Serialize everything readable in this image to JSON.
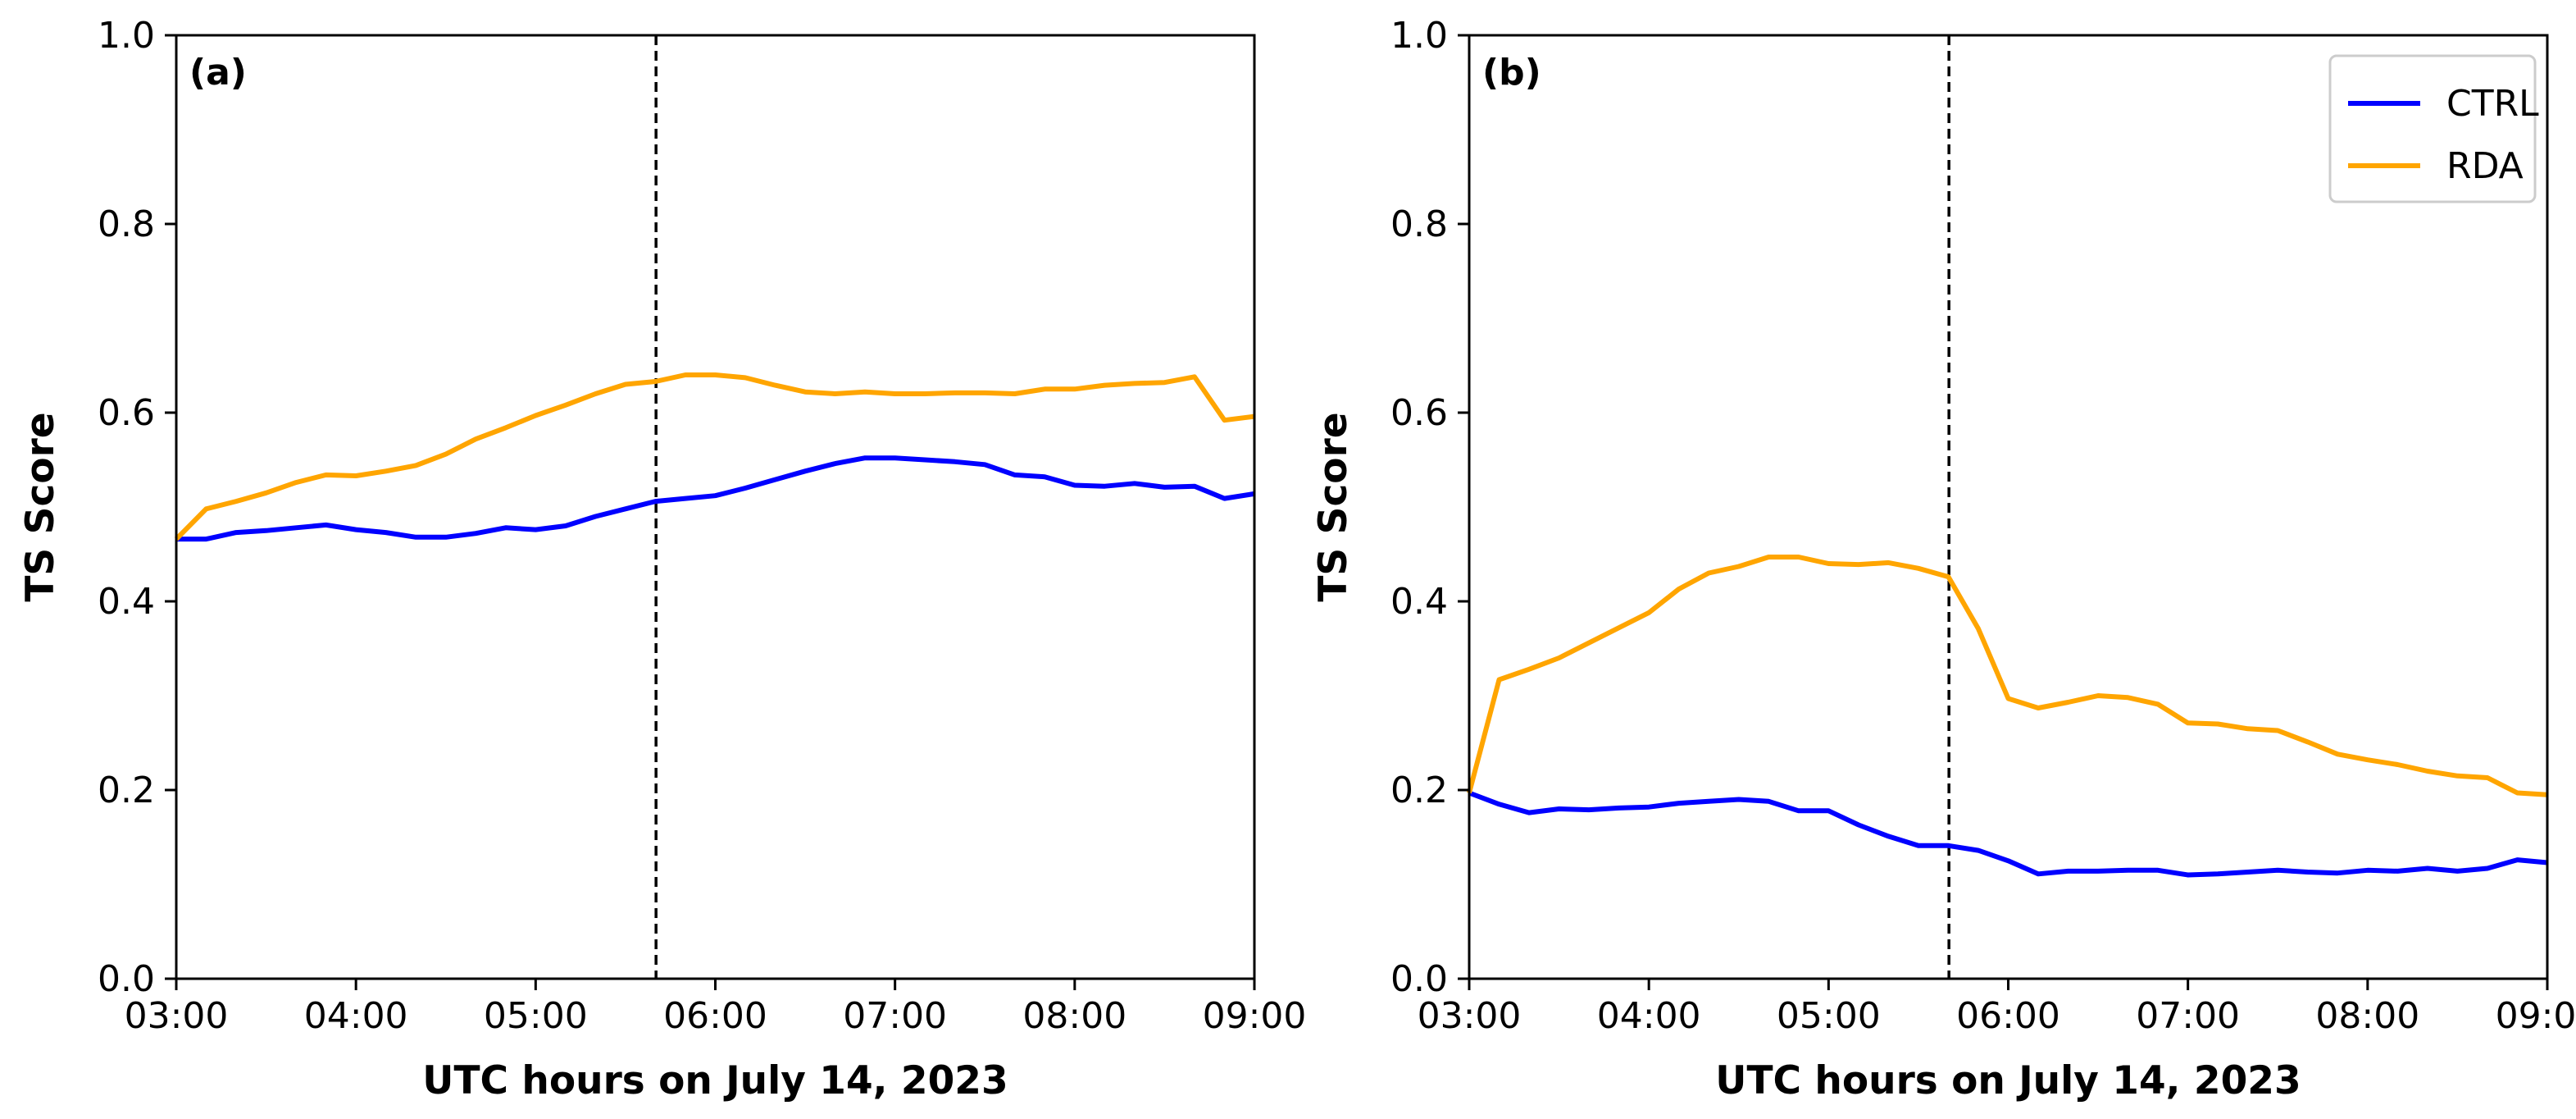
{
  "chart_data": [
    {
      "type": "line",
      "panel_label": "(a)",
      "xlabel": "UTC hours on July 14, 2023",
      "ylabel": "TS Score",
      "xlim": [
        3.0,
        9.0
      ],
      "ylim": [
        0.0,
        1.0
      ],
      "xticks": [
        3,
        4,
        5,
        6,
        7,
        8,
        9
      ],
      "xtick_labels": [
        "03:00",
        "04:00",
        "05:00",
        "06:00",
        "07:00",
        "08:00",
        "09:00"
      ],
      "yticks": [
        0.0,
        0.2,
        0.4,
        0.6,
        0.8,
        1.0
      ],
      "ytick_labels": [
        "0.0",
        "0.2",
        "0.4",
        "0.6",
        "0.8",
        "1.0"
      ],
      "vline_x": 5.67,
      "x": [
        3.0,
        3.1667,
        3.3333,
        3.5,
        3.6667,
        3.8333,
        4.0,
        4.1667,
        4.3333,
        4.5,
        4.6667,
        4.8333,
        5.0,
        5.1667,
        5.3333,
        5.5,
        5.6667,
        5.8333,
        6.0,
        6.1667,
        6.3333,
        6.5,
        6.6667,
        6.8333,
        7.0,
        7.1667,
        7.3333,
        7.5,
        7.6667,
        7.8333,
        8.0,
        8.1667,
        8.3333,
        8.5,
        8.6667,
        8.8333,
        9.0
      ],
      "series": [
        {
          "name": "CTRL",
          "color": "#0000ff",
          "values": [
            0.466,
            0.466,
            0.473,
            0.475,
            0.478,
            0.481,
            0.476,
            0.473,
            0.468,
            0.468,
            0.472,
            0.478,
            0.476,
            0.48,
            0.49,
            0.498,
            0.506,
            0.509,
            0.512,
            0.52,
            0.529,
            0.538,
            0.546,
            0.552,
            0.552,
            0.55,
            0.548,
            0.545,
            0.534,
            0.532,
            0.523,
            0.522,
            0.525,
            0.521,
            0.522,
            0.509,
            0.514
          ]
        },
        {
          "name": "RDA",
          "color": "#ffa500",
          "values": [
            0.466,
            0.498,
            0.506,
            0.515,
            0.526,
            0.534,
            0.533,
            0.538,
            0.544,
            0.556,
            0.572,
            0.584,
            0.597,
            0.608,
            0.62,
            0.63,
            0.633,
            0.64,
            0.64,
            0.637,
            0.629,
            0.622,
            0.62,
            0.622,
            0.62,
            0.62,
            0.621,
            0.621,
            0.62,
            0.625,
            0.625,
            0.629,
            0.631,
            0.632,
            0.638,
            0.592,
            0.596
          ]
        }
      ]
    },
    {
      "type": "line",
      "panel_label": "(b)",
      "xlabel": "UTC hours on July 14, 2023",
      "ylabel": "TS Score",
      "xlim": [
        3.0,
        9.0
      ],
      "ylim": [
        0.0,
        1.0
      ],
      "xticks": [
        3,
        4,
        5,
        6,
        7,
        8,
        9
      ],
      "xtick_labels": [
        "03:00",
        "04:00",
        "05:00",
        "06:00",
        "07:00",
        "08:00",
        "09:00"
      ],
      "yticks": [
        0.0,
        0.2,
        0.4,
        0.6,
        0.8,
        1.0
      ],
      "ytick_labels": [
        "0.0",
        "0.2",
        "0.4",
        "0.6",
        "0.8",
        "1.0"
      ],
      "vline_x": 5.67,
      "legend": {
        "position": "top-right",
        "entries": [
          "CTRL",
          "RDA"
        ]
      },
      "x": [
        3.0,
        3.1667,
        3.3333,
        3.5,
        3.6667,
        3.8333,
        4.0,
        4.1667,
        4.3333,
        4.5,
        4.6667,
        4.8333,
        5.0,
        5.1667,
        5.3333,
        5.5,
        5.6667,
        5.8333,
        6.0,
        6.1667,
        6.3333,
        6.5,
        6.6667,
        6.8333,
        7.0,
        7.1667,
        7.3333,
        7.5,
        7.6667,
        7.8333,
        8.0,
        8.1667,
        8.3333,
        8.5,
        8.6667,
        8.8333,
        9.0
      ],
      "series": [
        {
          "name": "CTRL",
          "color": "#0000ff",
          "values": [
            0.197,
            0.185,
            0.176,
            0.18,
            0.179,
            0.181,
            0.182,
            0.186,
            0.188,
            0.19,
            0.188,
            0.178,
            0.178,
            0.163,
            0.151,
            0.141,
            0.141,
            0.136,
            0.125,
            0.111,
            0.114,
            0.114,
            0.115,
            0.115,
            0.11,
            0.111,
            0.113,
            0.115,
            0.113,
            0.112,
            0.115,
            0.114,
            0.117,
            0.114,
            0.117,
            0.126,
            0.123
          ]
        },
        {
          "name": "RDA",
          "color": "#ffa500",
          "values": [
            0.197,
            0.317,
            0.328,
            0.34,
            0.356,
            0.372,
            0.388,
            0.413,
            0.43,
            0.437,
            0.447,
            0.447,
            0.44,
            0.439,
            0.441,
            0.435,
            0.426,
            0.371,
            0.297,
            0.287,
            0.293,
            0.3,
            0.298,
            0.291,
            0.271,
            0.27,
            0.265,
            0.263,
            0.251,
            0.238,
            0.232,
            0.227,
            0.22,
            0.215,
            0.213,
            0.197,
            0.195
          ]
        }
      ]
    }
  ]
}
